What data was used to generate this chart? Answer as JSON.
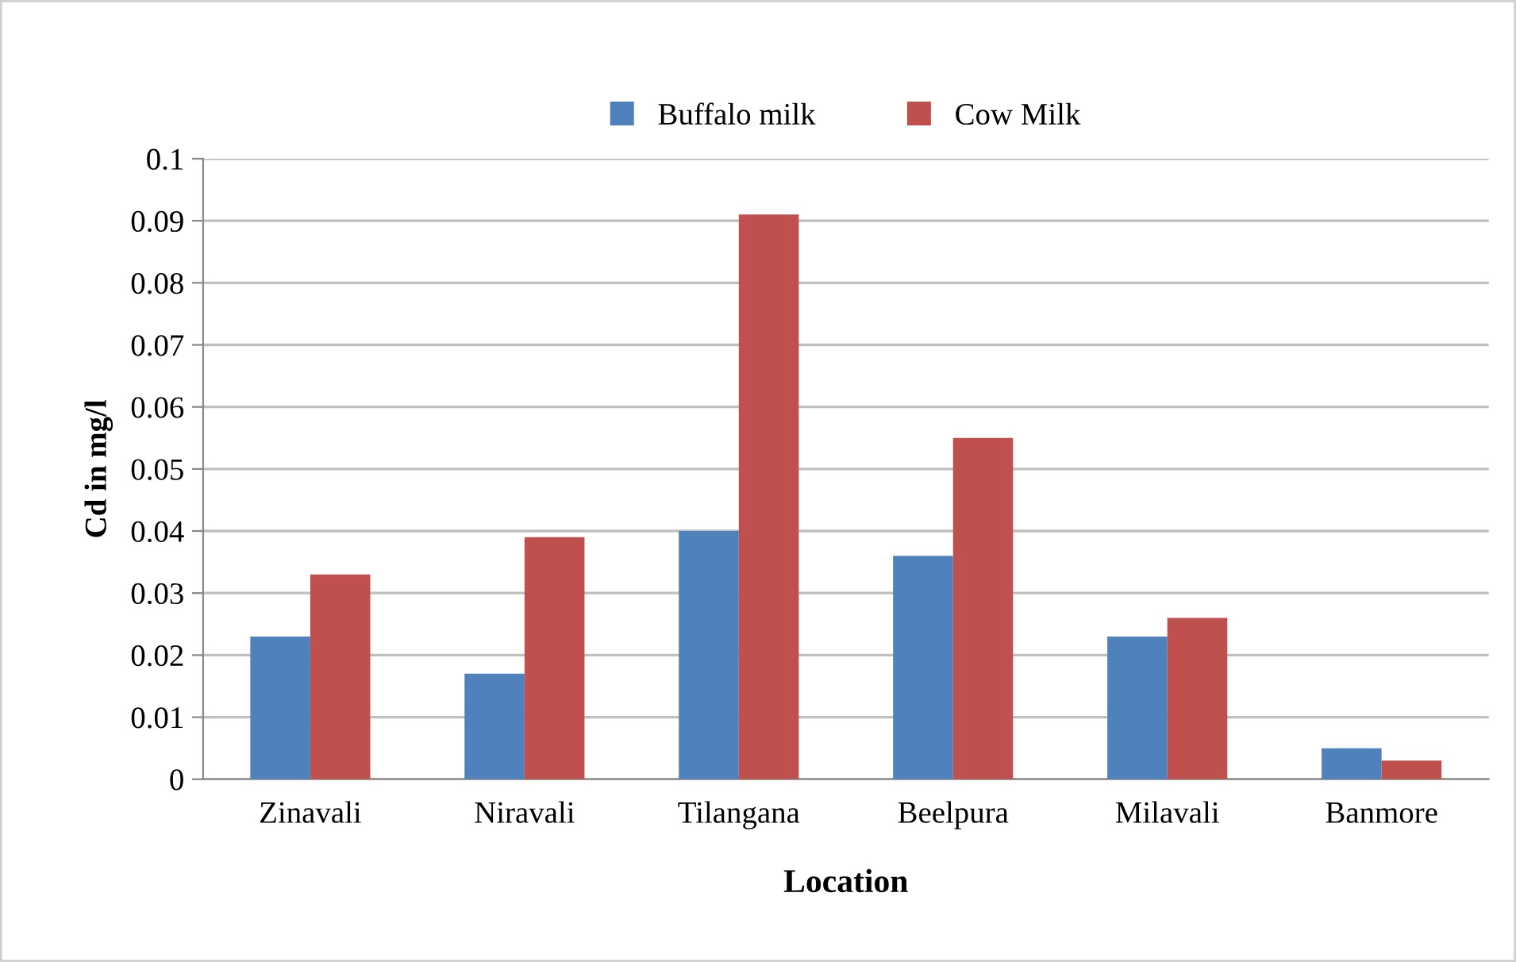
{
  "chart_data": {
    "type": "bar",
    "xlabel": "Location",
    "ylabel": "Cd in mg/l",
    "categories": [
      "Zinavali",
      "Niravali",
      "Tilangana",
      "Beelpura",
      "Milavali",
      "Banmore"
    ],
    "series": [
      {
        "name": "Buffalo milk",
        "color": "#4f81bd",
        "values": [
          0.023,
          0.017,
          0.04,
          0.036,
          0.023,
          0.005
        ]
      },
      {
        "name": "Cow Milk",
        "color": "#c0504d",
        "values": [
          0.033,
          0.039,
          0.091,
          0.055,
          0.026,
          0.003
        ]
      }
    ],
    "ylim": [
      0,
      0.1
    ],
    "yticks": [
      0,
      0.01,
      0.02,
      0.03,
      0.04,
      0.05,
      0.06,
      0.07,
      0.08,
      0.09,
      0.1
    ],
    "grid": "y",
    "legend": "top"
  }
}
